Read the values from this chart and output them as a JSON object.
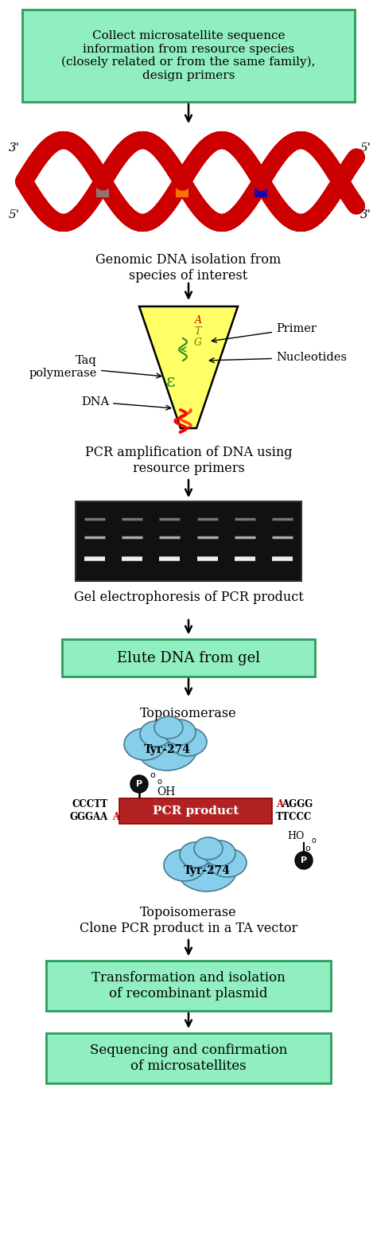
{
  "bg_color": "#ffffff",
  "box1_text": "Collect microsatellite sequence\ninformation from resource species\n(closely related or from the same family),\ndesign primers",
  "box1_color": "#90EEC0",
  "box1_border": "#2a9d5c",
  "text_dna": "Genomic DNA isolation from\nspecies of interest",
  "text_pcr_amp": "PCR amplification of DNA using\nresource primers",
  "text_gel": "Gel electrophoresis of PCR product",
  "box2_text": "Elute DNA from gel",
  "box2_color": "#90EEC0",
  "box2_border": "#2a9d5c",
  "text_topo1": "Topoisomerase",
  "text_tyr": "Tyr-274",
  "text_pcr_product": "PCR product",
  "pcr_bar_color": "#b22222",
  "text_topo2": "Topoisomerase\nClone PCR product in a TA vector",
  "box3_text": "Transformation and isolation\nof recombinant plasmid",
  "box3_color": "#90EEC0",
  "box3_border": "#2a9d5c",
  "box4_text": "Sequencing and confirmation\nof microsatellites",
  "box4_color": "#90EEC0",
  "box4_border": "#2a9d5c",
  "arrow_color": "#000000",
  "topo_cloud_color": "#87CEEB",
  "p_circle_color": "#111111",
  "p_text_color": "#ffffff",
  "helix_color": "#cc0000",
  "helix_amp": 52,
  "helix_lw": 16
}
